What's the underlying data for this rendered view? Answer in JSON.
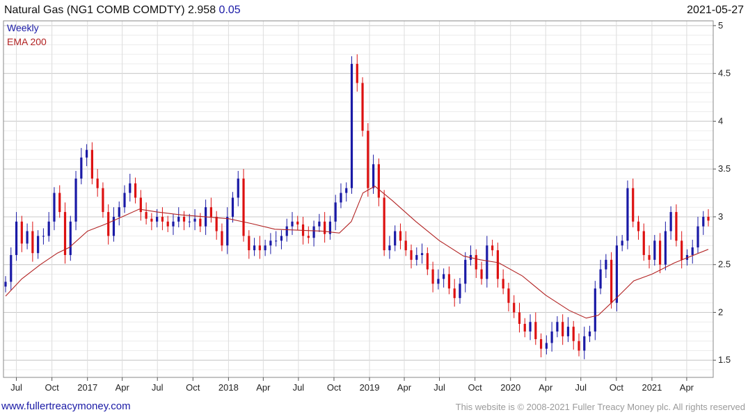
{
  "header": {
    "name": "Natural Gas (NG1 COMB COMDTY)",
    "price": "2.958",
    "change": "0.05",
    "date": "2021-05-27"
  },
  "legend": {
    "weekly": "Weekly",
    "ema": "EMA 200"
  },
  "footer": {
    "url": "www.fullertreacymoney.com",
    "copyright": "This website is © 2008-2021 Fuller Treacy Money plc. All rights reserved"
  },
  "colors": {
    "up": "#1a1aa6",
    "down": "#dd1111",
    "ema": "#b22222"
  },
  "chart_data": {
    "type": "candlestick",
    "xlabel": "",
    "ylabel": "",
    "x_range": [
      "2016-06-03",
      "2021-05-27"
    ],
    "ylim": [
      1.32,
      5.05
    ],
    "grid": true,
    "legend_position": "top-left",
    "x_ticks": [
      {
        "label": "Jul",
        "date": "2016-07-01"
      },
      {
        "label": "Oct",
        "date": "2016-10-01"
      },
      {
        "label": "2017",
        "date": "2017-01-01"
      },
      {
        "label": "Apr",
        "date": "2017-04-01"
      },
      {
        "label": "Jul",
        "date": "2017-07-01"
      },
      {
        "label": "Oct",
        "date": "2017-10-01"
      },
      {
        "label": "2018",
        "date": "2018-01-01"
      },
      {
        "label": "Apr",
        "date": "2018-04-01"
      },
      {
        "label": "Jul",
        "date": "2018-07-01"
      },
      {
        "label": "Oct",
        "date": "2018-10-01"
      },
      {
        "label": "2019",
        "date": "2019-01-01"
      },
      {
        "label": "Apr",
        "date": "2019-04-01"
      },
      {
        "label": "Jul",
        "date": "2019-07-01"
      },
      {
        "label": "Oct",
        "date": "2019-10-01"
      },
      {
        "label": "2020",
        "date": "2020-01-01"
      },
      {
        "label": "Apr",
        "date": "2020-04-01"
      },
      {
        "label": "Jul",
        "date": "2020-07-01"
      },
      {
        "label": "Oct",
        "date": "2020-10-01"
      },
      {
        "label": "2021",
        "date": "2021-01-01"
      },
      {
        "label": "Apr",
        "date": "2021-04-01"
      }
    ],
    "y_ticks": [
      "1.5",
      "2",
      "2.5",
      "3",
      "3.5",
      "4",
      "4.5",
      "5"
    ],
    "weekly_close": [
      [
        "2016-06-03",
        2.32
      ],
      [
        "2016-06-17",
        2.6
      ],
      [
        "2016-07-01",
        2.95
      ],
      [
        "2016-07-15",
        2.72
      ],
      [
        "2016-07-29",
        2.85
      ],
      [
        "2016-08-12",
        2.62
      ],
      [
        "2016-08-26",
        2.8
      ],
      [
        "2016-09-09",
        2.8
      ],
      [
        "2016-09-23",
        2.95
      ],
      [
        "2016-10-07",
        3.25
      ],
      [
        "2016-10-21",
        3.05
      ],
      [
        "2016-11-04",
        2.6
      ],
      [
        "2016-11-18",
        2.95
      ],
      [
        "2016-12-02",
        3.4
      ],
      [
        "2016-12-16",
        3.62
      ],
      [
        "2016-12-30",
        3.7
      ],
      [
        "2017-01-13",
        3.4
      ],
      [
        "2017-01-27",
        3.3
      ],
      [
        "2017-02-10",
        3.05
      ],
      [
        "2017-02-24",
        2.8
      ],
      [
        "2017-03-10",
        3.0
      ],
      [
        "2017-03-24",
        3.1
      ],
      [
        "2017-04-07",
        3.25
      ],
      [
        "2017-04-21",
        3.35
      ],
      [
        "2017-05-05",
        3.2
      ],
      [
        "2017-05-19",
        3.05
      ],
      [
        "2017-06-02",
        2.98
      ],
      [
        "2017-06-16",
        2.95
      ],
      [
        "2017-06-30",
        3.0
      ],
      [
        "2017-07-14",
        2.95
      ],
      [
        "2017-07-28",
        2.9
      ],
      [
        "2017-08-11",
        2.95
      ],
      [
        "2017-08-25",
        3.0
      ],
      [
        "2017-09-08",
        2.95
      ],
      [
        "2017-09-22",
        2.95
      ],
      [
        "2017-10-06",
        2.98
      ],
      [
        "2017-10-20",
        2.9
      ],
      [
        "2017-11-03",
        3.1
      ],
      [
        "2017-11-17",
        3.0
      ],
      [
        "2017-12-01",
        2.85
      ],
      [
        "2017-12-15",
        2.7
      ],
      [
        "2017-12-29",
        3.0
      ],
      [
        "2018-01-12",
        3.2
      ],
      [
        "2018-01-26",
        3.4
      ],
      [
        "2018-02-09",
        2.8
      ],
      [
        "2018-02-23",
        2.65
      ],
      [
        "2018-03-09",
        2.7
      ],
      [
        "2018-03-23",
        2.65
      ],
      [
        "2018-04-06",
        2.7
      ],
      [
        "2018-04-20",
        2.75
      ],
      [
        "2018-05-04",
        2.75
      ],
      [
        "2018-05-18",
        2.8
      ],
      [
        "2018-06-01",
        2.9
      ],
      [
        "2018-06-15",
        2.95
      ],
      [
        "2018-06-29",
        2.92
      ],
      [
        "2018-07-13",
        2.8
      ],
      [
        "2018-07-27",
        2.78
      ],
      [
        "2018-08-10",
        2.9
      ],
      [
        "2018-08-24",
        2.95
      ],
      [
        "2018-09-07",
        2.82
      ],
      [
        "2018-09-21",
        2.95
      ],
      [
        "2018-10-05",
        3.15
      ],
      [
        "2018-10-19",
        3.25
      ],
      [
        "2018-11-02",
        3.3
      ],
      [
        "2018-11-16",
        4.6
      ],
      [
        "2018-11-30",
        4.4
      ],
      [
        "2018-12-14",
        3.9
      ],
      [
        "2018-12-28",
        3.3
      ],
      [
        "2019-01-11",
        3.55
      ],
      [
        "2019-01-25",
        3.2
      ],
      [
        "2019-02-08",
        2.65
      ],
      [
        "2019-02-22",
        2.7
      ],
      [
        "2019-03-08",
        2.85
      ],
      [
        "2019-03-22",
        2.75
      ],
      [
        "2019-04-05",
        2.65
      ],
      [
        "2019-04-19",
        2.55
      ],
      [
        "2019-05-03",
        2.6
      ],
      [
        "2019-05-17",
        2.62
      ],
      [
        "2019-05-31",
        2.45
      ],
      [
        "2019-06-14",
        2.3
      ],
      [
        "2019-06-28",
        2.35
      ],
      [
        "2019-07-12",
        2.4
      ],
      [
        "2019-07-26",
        2.25
      ],
      [
        "2019-08-09",
        2.15
      ],
      [
        "2019-08-23",
        2.3
      ],
      [
        "2019-09-06",
        2.55
      ],
      [
        "2019-09-20",
        2.6
      ],
      [
        "2019-10-04",
        2.45
      ],
      [
        "2019-10-18",
        2.35
      ],
      [
        "2019-11-01",
        2.7
      ],
      [
        "2019-11-15",
        2.65
      ],
      [
        "2019-11-29",
        2.35
      ],
      [
        "2019-12-13",
        2.25
      ],
      [
        "2019-12-27",
        2.1
      ],
      [
        "2020-01-10",
        2.0
      ],
      [
        "2020-01-24",
        1.88
      ],
      [
        "2020-02-07",
        1.8
      ],
      [
        "2020-02-21",
        1.9
      ],
      [
        "2020-03-06",
        1.72
      ],
      [
        "2020-03-20",
        1.62
      ],
      [
        "2020-04-03",
        1.68
      ],
      [
        "2020-04-17",
        1.8
      ],
      [
        "2020-05-01",
        1.9
      ],
      [
        "2020-05-15",
        1.75
      ],
      [
        "2020-05-29",
        1.85
      ],
      [
        "2020-06-12",
        1.7
      ],
      [
        "2020-06-26",
        1.6
      ],
      [
        "2020-07-10",
        1.75
      ],
      [
        "2020-07-24",
        1.8
      ],
      [
        "2020-08-07",
        2.25
      ],
      [
        "2020-08-21",
        2.45
      ],
      [
        "2020-09-04",
        2.55
      ],
      [
        "2020-09-18",
        2.1
      ],
      [
        "2020-10-02",
        2.7
      ],
      [
        "2020-10-16",
        2.75
      ],
      [
        "2020-10-30",
        3.3
      ],
      [
        "2020-11-13",
        2.95
      ],
      [
        "2020-11-27",
        2.85
      ],
      [
        "2020-12-11",
        2.6
      ],
      [
        "2020-12-25",
        2.55
      ],
      [
        "2021-01-08",
        2.75
      ],
      [
        "2021-01-22",
        2.5
      ],
      [
        "2021-02-05",
        2.85
      ],
      [
        "2021-02-19",
        3.05
      ],
      [
        "2021-03-05",
        2.75
      ],
      [
        "2021-03-19",
        2.55
      ],
      [
        "2021-04-02",
        2.6
      ],
      [
        "2021-04-16",
        2.68
      ],
      [
        "2021-04-30",
        2.9
      ],
      [
        "2021-05-14",
        3.0
      ],
      [
        "2021-05-27",
        2.96
      ]
    ],
    "ema_200": [
      [
        "2016-06-03",
        2.17
      ],
      [
        "2016-07-15",
        2.35
      ],
      [
        "2016-09-01",
        2.5
      ],
      [
        "2016-10-15",
        2.62
      ],
      [
        "2016-11-15",
        2.68
      ],
      [
        "2017-01-01",
        2.85
      ],
      [
        "2017-02-15",
        2.92
      ],
      [
        "2017-04-01",
        3.0
      ],
      [
        "2017-05-15",
        3.08
      ],
      [
        "2017-07-01",
        3.05
      ],
      [
        "2017-09-01",
        3.02
      ],
      [
        "2017-11-01",
        3.0
      ],
      [
        "2018-01-01",
        2.98
      ],
      [
        "2018-03-01",
        2.93
      ],
      [
        "2018-05-01",
        2.87
      ],
      [
        "2018-07-01",
        2.86
      ],
      [
        "2018-09-01",
        2.85
      ],
      [
        "2018-10-15",
        2.83
      ],
      [
        "2018-11-15",
        2.95
      ],
      [
        "2018-12-15",
        3.25
      ],
      [
        "2019-01-15",
        3.32
      ],
      [
        "2019-03-01",
        3.17
      ],
      [
        "2019-05-01",
        2.95
      ],
      [
        "2019-07-01",
        2.75
      ],
      [
        "2019-09-01",
        2.59
      ],
      [
        "2019-10-15",
        2.55
      ],
      [
        "2019-12-01",
        2.52
      ],
      [
        "2020-02-01",
        2.38
      ],
      [
        "2020-04-01",
        2.18
      ],
      [
        "2020-06-01",
        2.02
      ],
      [
        "2020-07-15",
        1.94
      ],
      [
        "2020-08-15",
        1.97
      ],
      [
        "2020-10-01",
        2.15
      ],
      [
        "2020-11-15",
        2.33
      ],
      [
        "2021-01-01",
        2.4
      ],
      [
        "2021-03-01",
        2.52
      ],
      [
        "2021-05-27",
        2.66
      ]
    ]
  }
}
